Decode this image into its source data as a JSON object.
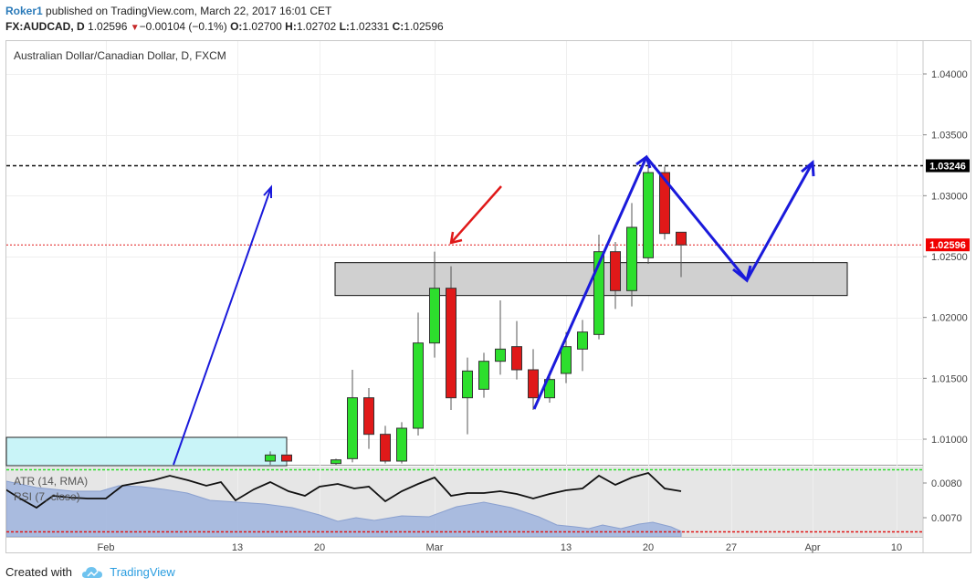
{
  "header": {
    "user": "Roker1",
    "published": "published on TradingView.com, March 22, 2017 16:01 CET",
    "symbol": "FX:AUDCAD, D",
    "last": "1.02596",
    "change": "−0.00104 (−0.1%)",
    "o_label": "O:",
    "o_value": "1.02700",
    "h_label": "H:",
    "h_value": "1.02702",
    "l_label": "L:",
    "l_value": "1.02331",
    "c_label": "C:",
    "c_value": "1.02596"
  },
  "chart": {
    "title": "Australian Dollar/Canadian Dollar, D, FXCM",
    "price_axis_ticks": [
      "1.04000",
      "1.03500",
      "1.03000",
      "1.02500",
      "1.02000",
      "1.01500",
      "1.01000"
    ],
    "resistance_label": "1.03246",
    "last_price_label": "1.02596",
    "indicator_labels": [
      "ATR (14, RMA)",
      "RSI (7, close)"
    ],
    "indicator_axis_ticks": [
      "0.0080",
      "0.0070"
    ],
    "date_axis_ticks": [
      "Feb",
      "13",
      "20",
      "Mar",
      "13",
      "20",
      "27",
      "Apr",
      "10"
    ]
  },
  "chart_data": {
    "type": "candlestick",
    "instrument": "AUDCAD",
    "timeframe": "D",
    "y_range": [
      1.0082,
      1.0428
    ],
    "resistance_level": 1.03246,
    "last_price": 1.02596,
    "support_zone": [
      1.0218,
      1.0245
    ],
    "candles": [
      {
        "x": 296,
        "o": 1.0082,
        "h": 1.009,
        "l": 1.0078,
        "c": 1.0087
      },
      {
        "x": 314,
        "o": 1.0087,
        "h": 1.0089,
        "l": 1.007,
        "c": 1.0082
      },
      {
        "x": 368,
        "o": 1.008,
        "h": 1.0084,
        "l": 1.0072,
        "c": 1.0083
      },
      {
        "x": 386,
        "o": 1.0084,
        "h": 1.0157,
        "l": 1.0081,
        "c": 1.0134
      },
      {
        "x": 404,
        "o": 1.0134,
        "h": 1.0142,
        "l": 1.0092,
        "c": 1.0104
      },
      {
        "x": 422,
        "o": 1.0104,
        "h": 1.0111,
        "l": 1.008,
        "c": 1.0082
      },
      {
        "x": 440,
        "o": 1.0082,
        "h": 1.0114,
        "l": 1.008,
        "c": 1.0109
      },
      {
        "x": 458,
        "o": 1.0109,
        "h": 1.0204,
        "l": 1.0103,
        "c": 1.0179
      },
      {
        "x": 476,
        "o": 1.0179,
        "h": 1.0254,
        "l": 1.0167,
        "c": 1.0224
      },
      {
        "x": 494,
        "o": 1.0224,
        "h": 1.0242,
        "l": 1.0124,
        "c": 1.0134
      },
      {
        "x": 512,
        "o": 1.0134,
        "h": 1.0167,
        "l": 1.0104,
        "c": 1.0156
      },
      {
        "x": 530,
        "o": 1.0141,
        "h": 1.0171,
        "l": 1.0134,
        "c": 1.0164
      },
      {
        "x": 548,
        "o": 1.0164,
        "h": 1.0214,
        "l": 1.0153,
        "c": 1.0174
      },
      {
        "x": 566,
        "o": 1.0176,
        "h": 1.0197,
        "l": 1.0149,
        "c": 1.0157
      },
      {
        "x": 584,
        "o": 1.0157,
        "h": 1.0174,
        "l": 1.0124,
        "c": 1.0134
      },
      {
        "x": 602,
        "o": 1.0134,
        "h": 1.0156,
        "l": 1.013,
        "c": 1.0149
      },
      {
        "x": 620,
        "o": 1.0154,
        "h": 1.0188,
        "l": 1.0146,
        "c": 1.0176
      },
      {
        "x": 638,
        "o": 1.0174,
        "h": 1.0198,
        "l": 1.0156,
        "c": 1.0188
      },
      {
        "x": 656,
        "o": 1.0186,
        "h": 1.0268,
        "l": 1.0182,
        "c": 1.0254
      },
      {
        "x": 674,
        "o": 1.0254,
        "h": 1.0262,
        "l": 1.0207,
        "c": 1.0222
      },
      {
        "x": 692,
        "o": 1.0222,
        "h": 1.0294,
        "l": 1.0209,
        "c": 1.0274
      },
      {
        "x": 710,
        "o": 1.0249,
        "h": 1.0328,
        "l": 1.0244,
        "c": 1.0319
      },
      {
        "x": 728,
        "o": 1.0319,
        "h": 1.0324,
        "l": 1.0264,
        "c": 1.0269
      },
      {
        "x": 746,
        "o": 1.027,
        "h": 1.02702,
        "l": 1.02331,
        "c": 1.02596
      }
    ],
    "rsi_series": [
      [
        6,
        536
      ],
      [
        22,
        546
      ],
      [
        40,
        556
      ],
      [
        58,
        543
      ],
      [
        78,
        545
      ],
      [
        96,
        546
      ],
      [
        116,
        546
      ],
      [
        134,
        532
      ],
      [
        150,
        529
      ],
      [
        168,
        526
      ],
      [
        186,
        521
      ],
      [
        206,
        526
      ],
      [
        226,
        532
      ],
      [
        242,
        528
      ],
      [
        258,
        548
      ],
      [
        278,
        536
      ],
      [
        296,
        528
      ],
      [
        316,
        538
      ],
      [
        334,
        543
      ],
      [
        350,
        533
      ],
      [
        370,
        530
      ],
      [
        388,
        535
      ],
      [
        404,
        533
      ],
      [
        422,
        549
      ],
      [
        440,
        538
      ],
      [
        458,
        530
      ],
      [
        476,
        523
      ],
      [
        494,
        543
      ],
      [
        512,
        540
      ],
      [
        530,
        540
      ],
      [
        548,
        538
      ],
      [
        566,
        541
      ],
      [
        584,
        546
      ],
      [
        602,
        541
      ],
      [
        620,
        537
      ],
      [
        638,
        535
      ],
      [
        656,
        521
      ],
      [
        674,
        531
      ],
      [
        692,
        523
      ],
      [
        710,
        518
      ],
      [
        728,
        535
      ],
      [
        746,
        538
      ]
    ]
  },
  "footer": {
    "created_with": "Created with",
    "brand": "TradingView"
  },
  "colors": {
    "bull": "#2ddf2d",
    "bear": "#e01919",
    "annotation_blue": "#1a1adb",
    "annotation_red": "#e01919",
    "zone_fill": "#d0d0d0",
    "box_fill": "#c9f4f8",
    "atr_fill": "#9db3dd",
    "indicator_bg": "#e6e6e6",
    "last_price_bg": "#f00000"
  }
}
